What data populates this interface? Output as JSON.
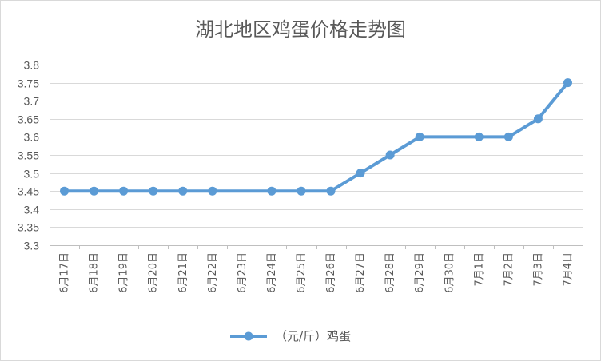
{
  "chart_data": {
    "type": "line",
    "title": "湖北地区鸡蛋价格走势图",
    "xlabel": "",
    "ylabel": "",
    "ylim": [
      3.3,
      3.8
    ],
    "ytick_step": 0.05,
    "yticks": [
      "3.3",
      "3.35",
      "3.4",
      "3.45",
      "3.5",
      "3.55",
      "3.6",
      "3.65",
      "3.7",
      "3.75",
      "3.8"
    ],
    "grid": true,
    "legend_position": "bottom",
    "categories": [
      "6月17日",
      "6月18日",
      "6月19日",
      "6月20日",
      "6月21日",
      "6月22日",
      "6月23日",
      "6月24日",
      "6月25日",
      "6月26日",
      "6月27日",
      "6月28日",
      "6月29日",
      "6月30日",
      "7月1日",
      "7月2日",
      "7月3日",
      "7月4日"
    ],
    "series": [
      {
        "name": "（元/斤）鸡蛋",
        "color": "#5b9bd5",
        "values": [
          3.45,
          3.45,
          3.45,
          3.45,
          3.45,
          3.45,
          null,
          3.45,
          3.45,
          3.45,
          3.5,
          3.55,
          3.6,
          null,
          3.6,
          3.6,
          3.65,
          3.75
        ]
      }
    ]
  }
}
